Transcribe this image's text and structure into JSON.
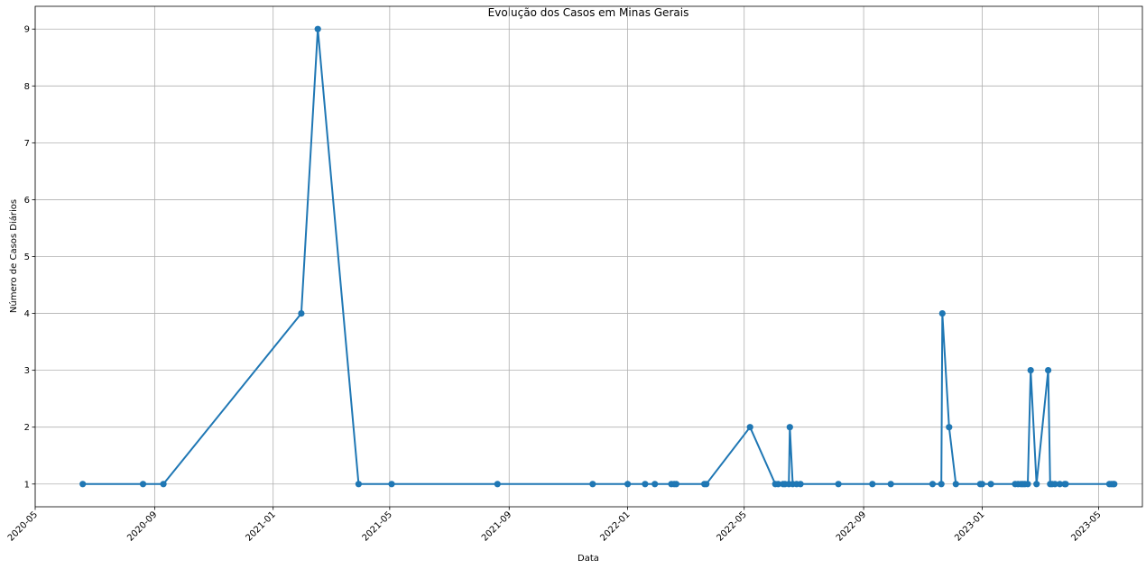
{
  "chart_data": {
    "type": "line",
    "title": "Evolução dos Casos em Minas Gerais",
    "xlabel": "Data",
    "ylabel": "Número de Casos Diários",
    "xlim": [
      "2020-05-01",
      "2023-06-15"
    ],
    "ylim": [
      0.6,
      9.4
    ],
    "grid": true,
    "marker": "circle",
    "line_color": "#1f77b4",
    "xticks": [
      "2020-05",
      "2020-09",
      "2021-01",
      "2021-05",
      "2021-09",
      "2022-01",
      "2022-05",
      "2022-09",
      "2023-01",
      "2023-05"
    ],
    "yticks": [
      "1",
      "2",
      "3",
      "4",
      "5",
      "6",
      "7",
      "8",
      "9"
    ],
    "series": [
      {
        "x": [
          "2020-06-19",
          "2020-08-20",
          "2020-09-10",
          "2021-01-30",
          "2021-02-16",
          "2021-03-30",
          "2021-05-03",
          "2021-08-20",
          "2021-11-26",
          "2022-01-01",
          "2022-01-19",
          "2022-01-29",
          "2022-02-15",
          "2022-02-18",
          "2022-02-20",
          "2022-03-21",
          "2022-03-23",
          "2022-05-07",
          "2022-06-02",
          "2022-06-05",
          "2022-06-10",
          "2022-06-12",
          "2022-06-16",
          "2022-06-17",
          "2022-06-20",
          "2022-06-24",
          "2022-06-28",
          "2022-08-06",
          "2022-09-10",
          "2022-09-29",
          "2022-11-11",
          "2022-11-20",
          "2022-11-21",
          "2022-11-28",
          "2022-12-05",
          "2022-12-30",
          "2023-01-01",
          "2023-01-10",
          "2023-02-04",
          "2023-02-07",
          "2023-02-10",
          "2023-02-12",
          "2023-02-14",
          "2023-02-17",
          "2023-02-20",
          "2023-02-26",
          "2023-03-10",
          "2023-03-12",
          "2023-03-14",
          "2023-03-17",
          "2023-03-22",
          "2023-03-27",
          "2023-03-28",
          "2023-05-12",
          "2023-05-14",
          "2023-05-16",
          "2023-05-17"
        ],
        "y": [
          1,
          1,
          1,
          4,
          9,
          1,
          1,
          1,
          1,
          1,
          1,
          1,
          1,
          1,
          1,
          1,
          1,
          2,
          1,
          1,
          1,
          1,
          1,
          2,
          1,
          1,
          1,
          1,
          1,
          1,
          1,
          1,
          4,
          2,
          1,
          1,
          1,
          1,
          1,
          1,
          1,
          1,
          1,
          1,
          3,
          1,
          3,
          1,
          1,
          1,
          1,
          1,
          1,
          1,
          1,
          1,
          1
        ]
      }
    ]
  }
}
